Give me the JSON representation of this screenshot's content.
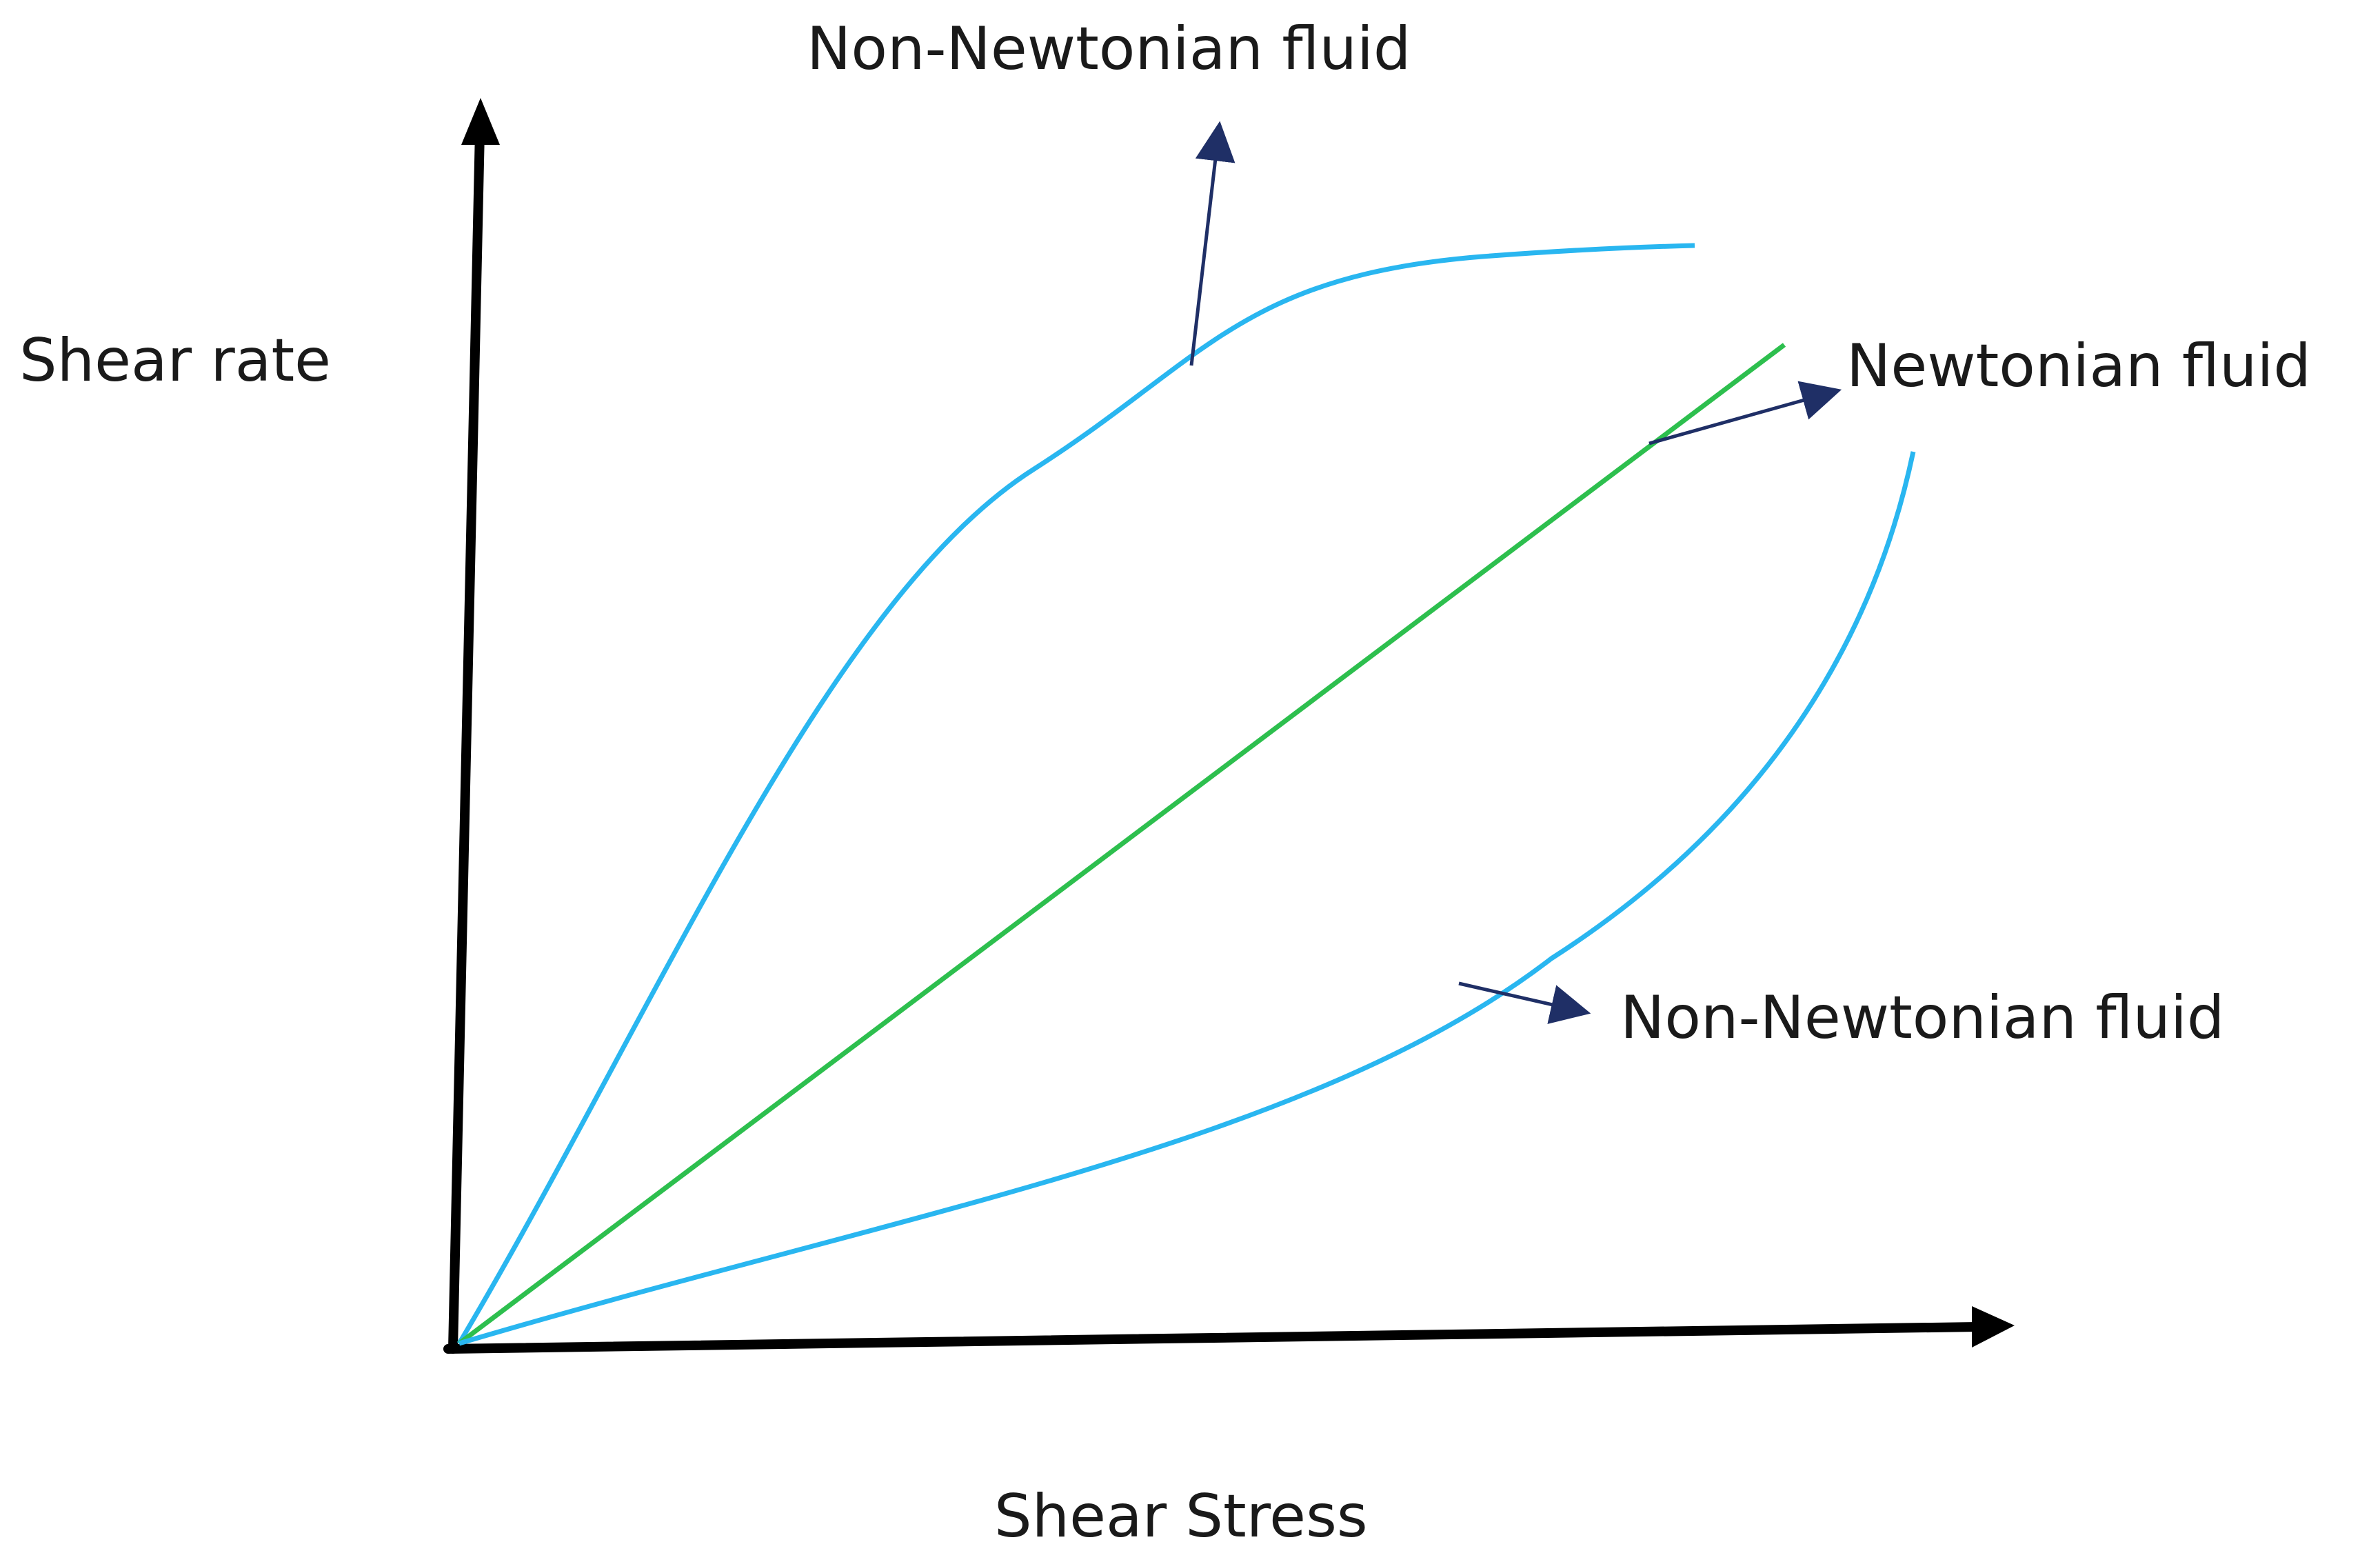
{
  "axes": {
    "y_label": "Shear rate",
    "x_label": "Shear Stress"
  },
  "annotations": {
    "upper_curve": "Non-Newtonian fluid",
    "straight_line": "Newtonian fluid",
    "lower_curve": "Non-Newtonian fluid"
  },
  "colors": {
    "non_newtonian_curve": "#29b6f0",
    "newtonian_line": "#2dbf4e",
    "pointer_arrow": "#1f2f66",
    "axis": "#000000",
    "text": "#1a1a1a"
  }
}
